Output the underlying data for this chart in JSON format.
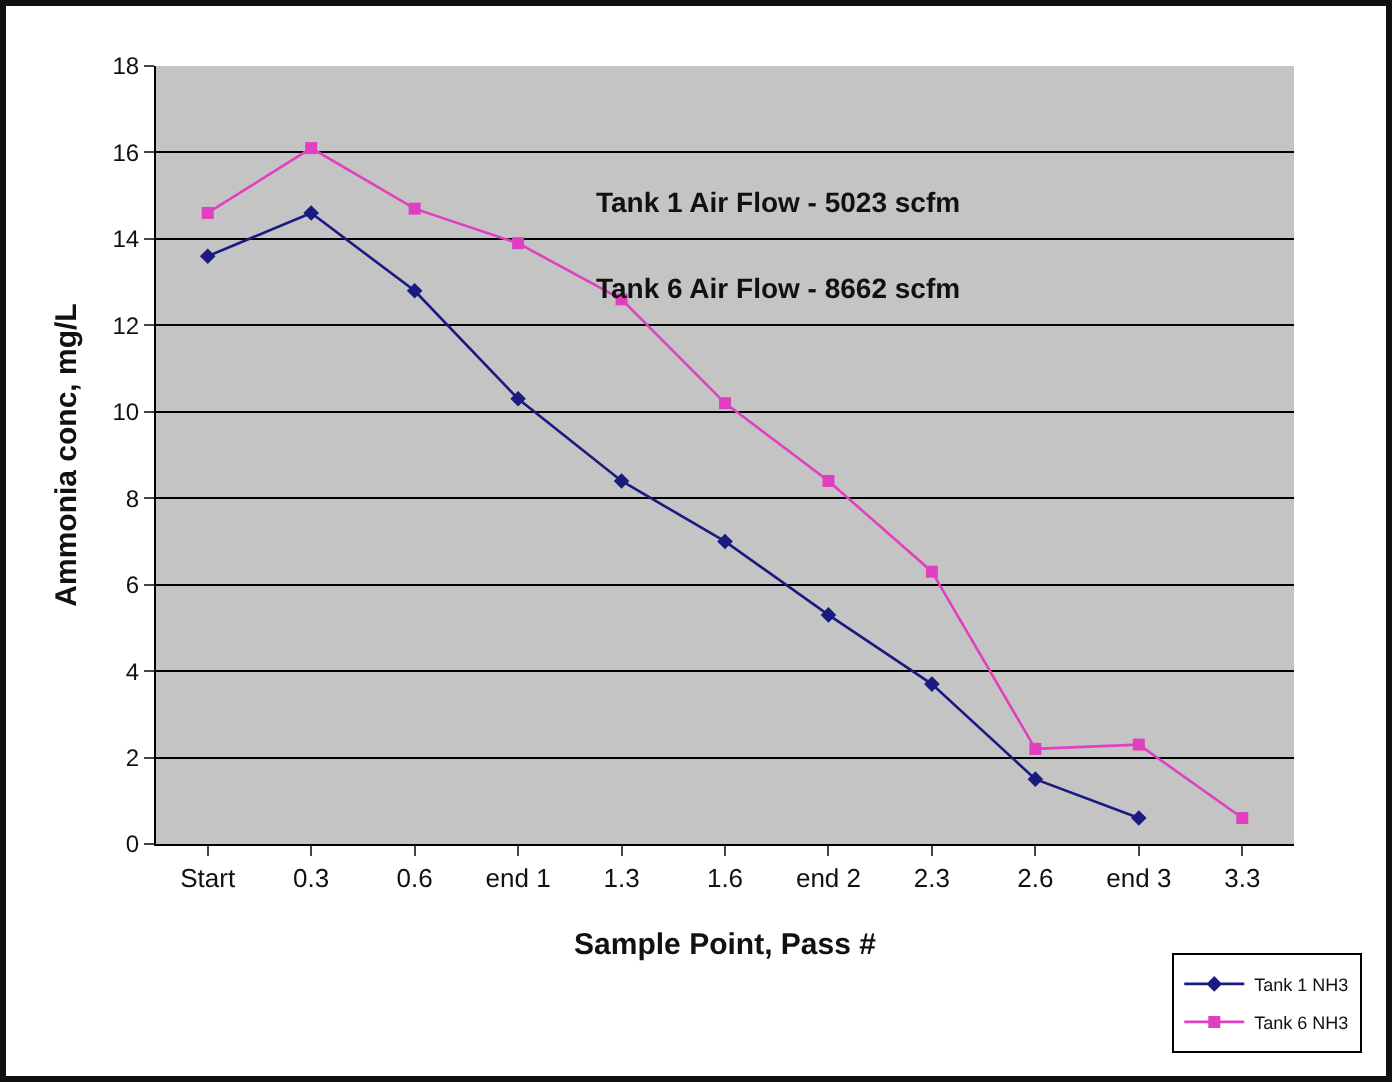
{
  "chart_data": {
    "type": "line",
    "xlabel": "Sample Point, Pass #",
    "ylabel": "Ammonia conc, mg/L",
    "categories": [
      "Start",
      "0.3",
      "0.6",
      "end 1",
      "1.3",
      "1.6",
      "end 2",
      "2.3",
      "2.6",
      "end 3",
      "3.3"
    ],
    "series": [
      {
        "name": "Tank 1 NH3",
        "color": "#1a1a80",
        "values": [
          13.6,
          14.6,
          12.8,
          10.3,
          8.4,
          7.0,
          5.3,
          3.7,
          1.5,
          0.6,
          null
        ]
      },
      {
        "name": "Tank 6 NH3",
        "color": "#e040c0",
        "marker": "square",
        "values": [
          14.6,
          16.1,
          14.7,
          13.9,
          12.6,
          10.2,
          8.4,
          6.3,
          2.2,
          2.3,
          0.6
        ]
      }
    ],
    "ylim": [
      0,
      18
    ],
    "yticks": [
      0,
      2,
      4,
      6,
      8,
      10,
      12,
      14,
      16,
      18
    ],
    "grid": "y",
    "legend": "bottom right",
    "marker": "diamond",
    "line_style": "solid",
    "annotations": [
      "Tank 1 Air Flow - 5023 scfm",
      "Tank 6 Air Flow - 8662 scfm"
    ]
  }
}
